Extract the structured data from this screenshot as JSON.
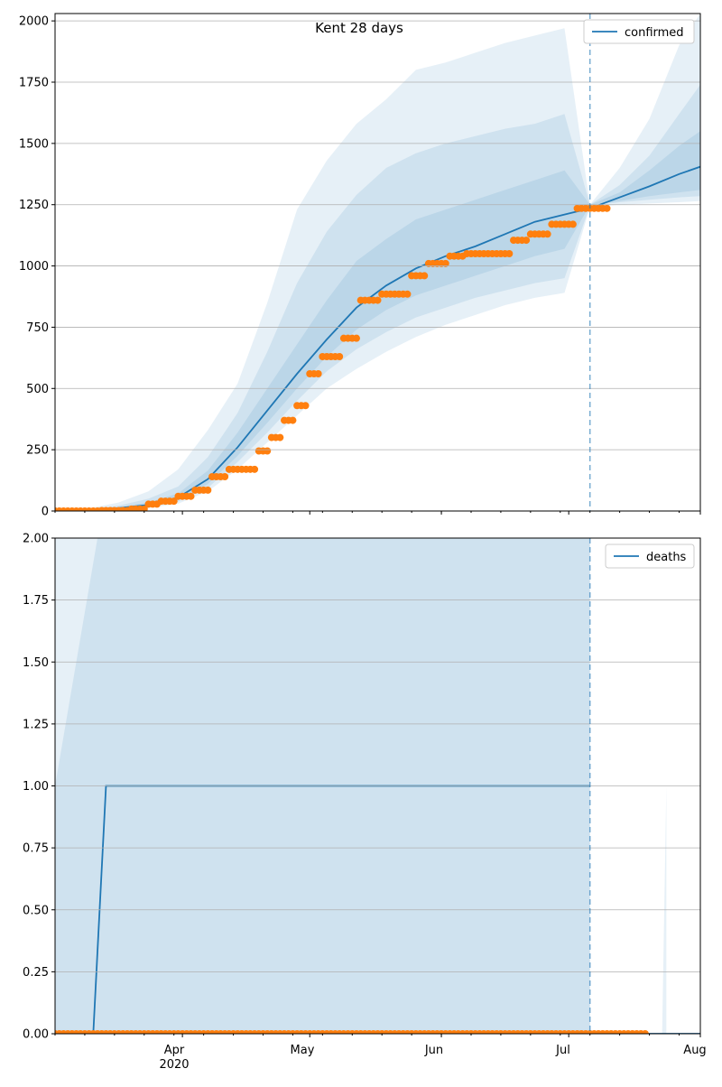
{
  "figure_title": "Kent 28 days",
  "colors": {
    "line": "#1f77b4",
    "band": "#1f77b4",
    "observed": "#ff7f0e",
    "grid": "#b0b0b0"
  },
  "x_axis": {
    "start": "2020-03-02",
    "end": "2020-08-01",
    "ticks": [
      {
        "date": "2020-04-01",
        "label": "Apr"
      },
      {
        "date": "2020-05-01",
        "label": "May"
      },
      {
        "date": "2020-06-01",
        "label": "Jun"
      },
      {
        "date": "2020-07-01",
        "label": "Jul"
      },
      {
        "date": "2020-08-01",
        "label": "Aug"
      }
    ],
    "year_label": "2020",
    "forecast_start": "2020-07-06"
  },
  "chart_data": [
    {
      "type": "line",
      "legend": "confirmed",
      "legend_position": "top-right",
      "ylim": [
        0,
        2030
      ],
      "yticks": [
        "0",
        "250",
        "500",
        "750",
        "1000",
        "1250",
        "1500",
        "1750",
        "2000"
      ],
      "ytick_values": [
        0,
        250,
        500,
        750,
        1000,
        1250,
        1500,
        1750,
        2000
      ],
      "grid": true,
      "median": {
        "x": [
          "2020-03-02",
          "2020-03-10",
          "2020-03-17",
          "2020-03-24",
          "2020-03-31",
          "2020-04-07",
          "2020-04-14",
          "2020-04-21",
          "2020-04-28",
          "2020-05-05",
          "2020-05-12",
          "2020-05-19",
          "2020-05-26",
          "2020-06-02",
          "2020-06-09",
          "2020-06-16",
          "2020-06-23",
          "2020-06-30",
          "2020-07-06",
          "2020-07-13",
          "2020-07-20",
          "2020-07-27",
          "2020-08-01"
        ],
        "y": [
          1,
          3,
          12,
          25,
          55,
          130,
          260,
          410,
          560,
          700,
          830,
          920,
          990,
          1040,
          1080,
          1130,
          1180,
          1210,
          1235,
          1280,
          1325,
          1375,
          1405
        ]
      },
      "bands": [
        {
          "lower": [
            0,
            1,
            5,
            12,
            30,
            80,
            170,
            280,
            390,
            500,
            580,
            650,
            710,
            760,
            800,
            840,
            870,
            890,
            1240,
            1250,
            1255,
            1260,
            1265
          ],
          "upper": [
            2,
            10,
            35,
            80,
            170,
            330,
            520,
            850,
            1230,
            1430,
            1580,
            1680,
            1800,
            1830,
            1870,
            1910,
            1940,
            1970,
            1250,
            1400,
            1600,
            1900,
            2030
          ]
        },
        {
          "lower": [
            0,
            2,
            7,
            16,
            38,
            95,
            200,
            320,
            450,
            570,
            660,
            730,
            790,
            830,
            870,
            900,
            930,
            950,
            1245,
            1260,
            1270,
            1280,
            1285
          ],
          "upper": [
            2,
            6,
            22,
            50,
            100,
            220,
            400,
            650,
            930,
            1140,
            1290,
            1400,
            1460,
            1500,
            1530,
            1560,
            1580,
            1620,
            1250,
            1330,
            1450,
            1620,
            1740
          ]
        },
        {
          "lower": [
            0,
            2,
            9,
            19,
            44,
            110,
            225,
            360,
            500,
            630,
            740,
            820,
            880,
            920,
            960,
            1000,
            1040,
            1070,
            1248,
            1265,
            1285,
            1300,
            1310
          ],
          "upper": [
            1,
            4,
            16,
            35,
            72,
            165,
            320,
            500,
            680,
            860,
            1020,
            1110,
            1190,
            1230,
            1270,
            1310,
            1350,
            1390,
            1250,
            1300,
            1390,
            1490,
            1550
          ]
        }
      ],
      "observed": {
        "x": [
          "2020-03-02",
          "2020-03-13",
          "2020-03-20",
          "2020-03-24",
          "2020-03-27",
          "2020-03-31",
          "2020-04-04",
          "2020-04-08",
          "2020-04-12",
          "2020-04-16",
          "2020-04-19",
          "2020-04-22",
          "2020-04-25",
          "2020-04-28",
          "2020-05-01",
          "2020-05-04",
          "2020-05-09",
          "2020-05-11",
          "2020-05-13",
          "2020-05-18",
          "2020-05-21",
          "2020-05-25",
          "2020-05-29",
          "2020-06-03",
          "2020-06-07",
          "2020-06-12",
          "2020-06-18",
          "2020-06-22",
          "2020-06-27",
          "2020-07-01",
          "2020-07-03",
          "2020-07-10"
        ],
        "y": [
          0,
          2,
          8,
          28,
          40,
          60,
          85,
          140,
          170,
          170,
          245,
          300,
          370,
          430,
          560,
          630,
          705,
          705,
          860,
          885,
          885,
          960,
          1010,
          1040,
          1050,
          1050,
          1105,
          1130,
          1170,
          1170,
          1235,
          1235
        ]
      }
    },
    {
      "type": "line",
      "legend": "deaths",
      "legend_position": "top-right",
      "ylim": [
        0,
        2
      ],
      "yticks": [
        "0.00",
        "0.25",
        "0.50",
        "0.75",
        "1.00",
        "1.25",
        "1.50",
        "1.75",
        "2.00"
      ],
      "ytick_values": [
        0,
        0.25,
        0.5,
        0.75,
        1,
        1.25,
        1.5,
        1.75,
        2
      ],
      "grid": true,
      "median": {
        "x": [
          "2020-03-02",
          "2020-03-11",
          "2020-03-14",
          "2020-07-06"
        ],
        "y": [
          0,
          0,
          1,
          1
        ]
      },
      "forecast_median": {
        "x": [
          "2020-07-06",
          "2020-08-01"
        ],
        "y": [
          0,
          0
        ]
      },
      "bands": [
        {
          "lower": [
            0,
            0
          ],
          "upper": [
            2,
            2
          ],
          "x": [
            "2020-03-02",
            "2020-07-06"
          ]
        },
        {
          "lower": [
            0,
            0,
            0
          ],
          "upper": [
            1,
            2,
            2
          ],
          "x": [
            "2020-03-02",
            "2020-03-12",
            "2020-07-06"
          ]
        },
        {
          "lower": [
            0,
            0,
            0
          ],
          "upper": [
            0,
            0,
            1
          ],
          "x": [
            "2020-07-06",
            "2020-07-23",
            "2020-07-24"
          ],
          "forecast": true
        }
      ],
      "observed": {
        "x": [
          "2020-03-02",
          "2020-07-19"
        ],
        "y": [
          0,
          0
        ],
        "daily": true
      }
    }
  ]
}
